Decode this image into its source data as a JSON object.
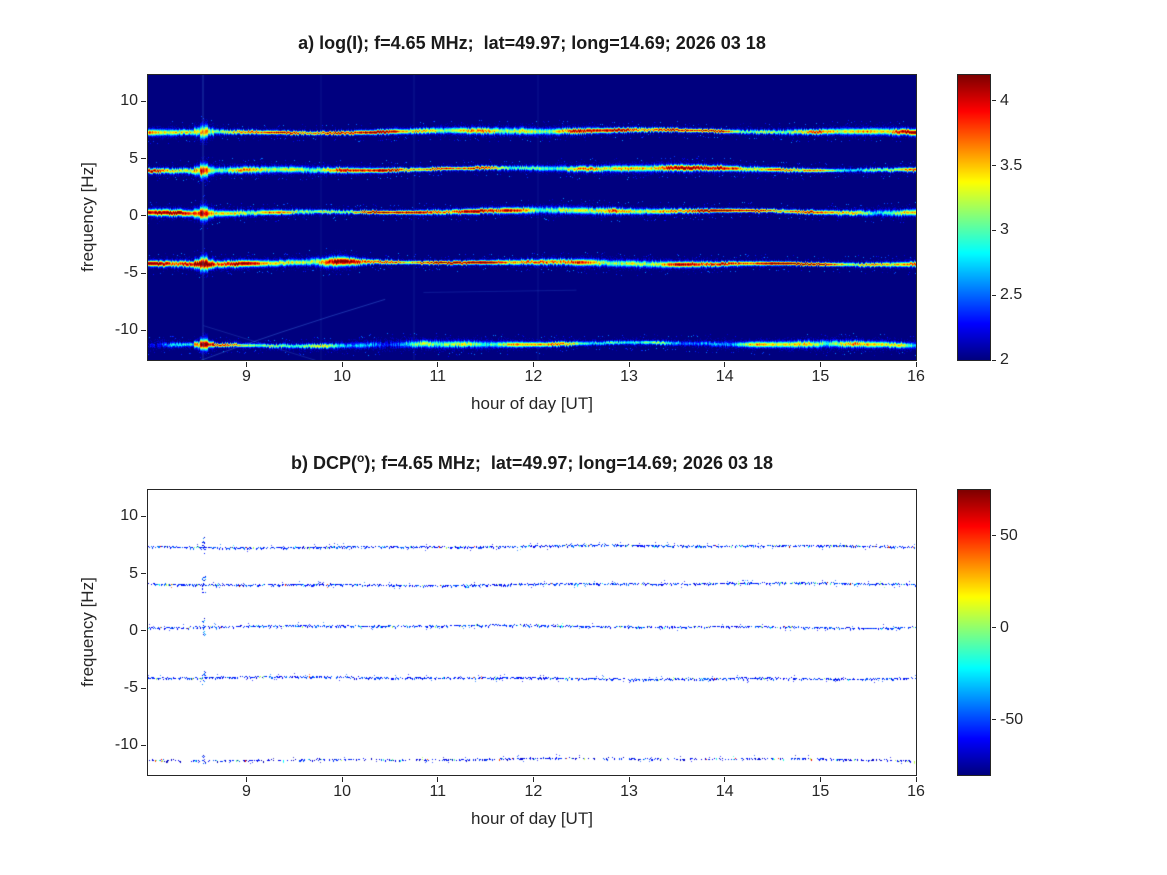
{
  "figure": {
    "background": "#ffffff",
    "axes_color": "#262626",
    "colormap": "jet"
  },
  "chart_data": [
    {
      "type": "heatmap",
      "panel": "a",
      "title": "a) log(I); f=4.65 MHz;  lat=49.97; long=14.69; 2026 03 18",
      "xlabel": "hour of day [UT]",
      "ylabel": "frequency [Hz]",
      "xlim": [
        7.97,
        16
      ],
      "ylim": [
        -12.6,
        12.3
      ],
      "xticks": [
        9,
        10,
        11,
        12,
        13,
        14,
        15,
        16
      ],
      "yticks": [
        10,
        5,
        0,
        -5,
        -10
      ],
      "colormap": "jet",
      "background_value": 2,
      "colorbar": {
        "range": [
          2,
          4.2
        ],
        "ticks": [
          4,
          3.5,
          3,
          2.5,
          2
        ]
      },
      "bands": [
        {
          "center_hz": 7.4,
          "mean_log_intensity": 3.7
        },
        {
          "center_hz": 4.1,
          "mean_log_intensity": 3.6
        },
        {
          "center_hz": 0.4,
          "mean_log_intensity": 3.7
        },
        {
          "center_hz": -4.1,
          "mean_log_intensity": 3.8
        },
        {
          "center_hz": -11.2,
          "mean_log_intensity": 3.4
        }
      ],
      "events": [
        {
          "type": "broadband_burst",
          "hour": 8.55
        },
        {
          "type": "enhancement",
          "band_hz": -4.1,
          "hour_start": 9.6,
          "hour_end": 10.35
        }
      ]
    },
    {
      "type": "heatmap",
      "panel": "b",
      "title_prefix": "b) DCP(",
      "title_sup": "o",
      "title_suffix": "); f=4.65 MHz;  lat=49.97; long=14.69; 2026 03 18",
      "xlabel": "hour of day [UT]",
      "ylabel": "frequency [Hz]",
      "xlim": [
        7.97,
        16
      ],
      "ylim": [
        -12.6,
        12.3
      ],
      "xticks": [
        9,
        10,
        11,
        12,
        13,
        14,
        15,
        16
      ],
      "yticks": [
        10,
        5,
        0,
        -5,
        -10
      ],
      "colormap": "jet",
      "colorbar": {
        "range": [
          -80,
          75
        ],
        "ticks": [
          50,
          0,
          -50
        ]
      },
      "bands": [
        {
          "center_hz": 7.4,
          "typical_dcp_deg": -60
        },
        {
          "center_hz": 4.1,
          "typical_dcp_deg": -60
        },
        {
          "center_hz": 0.4,
          "typical_dcp_deg": -60
        },
        {
          "center_hz": -4.1,
          "typical_dcp_deg": -60
        },
        {
          "center_hz": -11.2,
          "typical_dcp_deg": -65
        }
      ],
      "events": [
        {
          "type": "broadband_burst",
          "hour": 8.55
        }
      ]
    }
  ]
}
